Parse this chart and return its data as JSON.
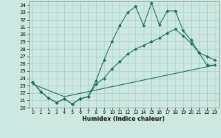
{
  "xlabel": "Humidex (Indice chaleur)",
  "xlim": [
    -0.5,
    23.5
  ],
  "ylim": [
    20,
    34.5
  ],
  "xticks": [
    0,
    1,
    2,
    3,
    4,
    5,
    6,
    7,
    8,
    9,
    10,
    11,
    12,
    13,
    14,
    15,
    16,
    17,
    18,
    19,
    20,
    21,
    22,
    23
  ],
  "yticks": [
    20,
    21,
    22,
    23,
    24,
    25,
    26,
    27,
    28,
    29,
    30,
    31,
    32,
    33,
    34
  ],
  "background_color": "#cce8e0",
  "grid_color": "#aacfc8",
  "line_color": "#1a6b5a",
  "line1_x": [
    0,
    1,
    2,
    3,
    4,
    5,
    6,
    7,
    8,
    9,
    10,
    11,
    12,
    13,
    14,
    15,
    16,
    17,
    18,
    19,
    20,
    21,
    22,
    23
  ],
  "line1_y": [
    23.5,
    22.2,
    21.3,
    20.7,
    21.2,
    20.5,
    21.2,
    21.5,
    23.7,
    26.5,
    29.0,
    31.2,
    33.0,
    33.8,
    31.2,
    34.3,
    31.3,
    33.2,
    33.2,
    30.5,
    29.2,
    27.5,
    27.0,
    26.5
  ],
  "line2_x": [
    0,
    1,
    2,
    3,
    4,
    5,
    6,
    7,
    8,
    9,
    10,
    11,
    12,
    13,
    14,
    15,
    16,
    17,
    18,
    19,
    20,
    21,
    22,
    23
  ],
  "line2_y": [
    23.5,
    22.2,
    21.3,
    20.7,
    21.2,
    20.5,
    21.2,
    21.5,
    23.2,
    24.0,
    25.3,
    26.3,
    27.3,
    28.0,
    28.5,
    29.0,
    29.5,
    30.2,
    30.7,
    29.8,
    28.8,
    27.5,
    25.8,
    25.8
  ],
  "line3_x": [
    0,
    4,
    23
  ],
  "line3_y": [
    23.2,
    21.5,
    25.8
  ]
}
